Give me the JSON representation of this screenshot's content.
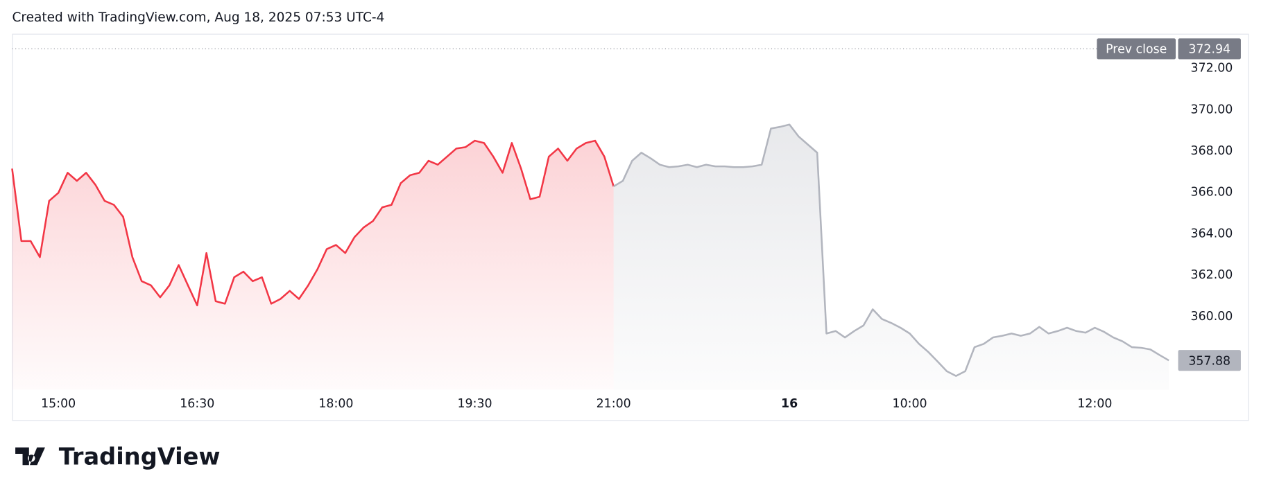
{
  "chart_data": {
    "type": "line",
    "title": "Created with TradingView.com, Aug 18, 2025 07:53 UTC-4",
    "brand": "TradingView",
    "categories": [
      null,
      null,
      null,
      null,
      null,
      "15:00",
      null,
      null,
      null,
      null,
      null,
      null,
      null,
      null,
      null,
      null,
      null,
      null,
      null,
      null,
      "16:30",
      null,
      null,
      null,
      null,
      null,
      null,
      null,
      null,
      null,
      null,
      null,
      null,
      null,
      null,
      "18:00",
      null,
      null,
      null,
      null,
      null,
      null,
      null,
      null,
      null,
      null,
      null,
      null,
      null,
      null,
      "19:30",
      null,
      null,
      null,
      null,
      null,
      null,
      null,
      null,
      null,
      null,
      null,
      null,
      null,
      null,
      "21:00",
      null,
      null,
      null,
      null,
      null,
      null,
      null,
      null,
      null,
      null,
      null,
      null,
      null,
      null,
      null,
      null,
      null,
      null,
      "16",
      null,
      null,
      null,
      null,
      null,
      null,
      null,
      null,
      null,
      null,
      null,
      null,
      "10:00",
      null,
      null,
      null,
      null,
      null,
      null,
      null,
      null,
      null,
      null,
      null,
      null,
      null,
      null,
      null,
      null,
      null,
      null,
      null,
      "12:00",
      null,
      null,
      null,
      null,
      null,
      null,
      null,
      null
    ],
    "series": [
      {
        "color": "#f23645",
        "values": [
          367.15,
          363.65,
          363.65,
          362.87,
          365.59,
          365.98,
          366.95,
          366.56,
          366.95,
          366.37,
          365.59,
          365.4,
          364.82,
          362.87,
          361.71,
          361.51,
          360.93,
          361.51,
          362.49,
          361.51,
          360.54,
          363.07,
          360.74,
          360.62,
          361.9,
          362.17,
          361.71,
          361.9,
          360.62,
          360.85,
          361.24,
          360.85,
          361.51,
          362.29,
          363.26,
          363.46,
          363.07,
          363.84,
          364.31,
          364.62,
          365.28,
          365.4,
          366.45,
          366.83,
          366.95,
          367.53,
          367.34,
          367.73,
          368.12,
          368.19,
          368.5,
          368.39,
          367.73,
          366.95,
          368.39,
          367.15,
          365.67,
          365.79,
          367.73,
          368.12,
          367.53,
          368.12,
          368.39,
          368.5,
          367.73,
          366.29,
          null,
          null,
          null,
          null,
          null,
          null,
          null,
          null,
          null,
          null,
          null,
          null,
          null,
          null,
          null,
          null,
          null,
          null,
          null,
          null,
          null,
          null,
          null,
          null,
          null,
          null,
          null,
          null,
          null,
          null,
          null,
          null,
          null,
          null,
          null,
          null,
          null,
          null,
          null,
          null,
          null,
          null,
          null,
          null,
          null,
          null,
          null,
          null,
          null,
          null,
          null,
          null,
          null,
          null,
          null,
          null,
          null,
          null,
          null,
          null
        ]
      },
      {
        "color": "#b2b5be",
        "values": [
          null,
          null,
          null,
          null,
          null,
          null,
          null,
          null,
          null,
          null,
          null,
          null,
          null,
          null,
          null,
          null,
          null,
          null,
          null,
          null,
          null,
          null,
          null,
          null,
          null,
          null,
          null,
          null,
          null,
          null,
          null,
          null,
          null,
          null,
          null,
          null,
          null,
          null,
          null,
          null,
          null,
          null,
          null,
          null,
          null,
          null,
          null,
          null,
          null,
          null,
          null,
          null,
          null,
          null,
          null,
          null,
          null,
          null,
          null,
          null,
          null,
          null,
          null,
          null,
          null,
          366.29,
          366.56,
          367.53,
          367.92,
          367.65,
          367.34,
          367.22,
          367.26,
          367.34,
          367.22,
          367.34,
          367.26,
          367.26,
          367.22,
          367.22,
          367.26,
          367.34,
          369.09,
          369.17,
          369.28,
          368.7,
          368.31,
          367.92,
          359.18,
          359.3,
          358.99,
          359.3,
          359.57,
          360.35,
          359.88,
          359.69,
          359.46,
          359.18,
          358.68,
          358.29,
          357.83,
          357.36,
          357.13,
          357.36,
          358.52,
          358.68,
          358.99,
          359.07,
          359.18,
          359.07,
          359.18,
          359.5,
          359.18,
          359.3,
          359.46,
          359.3,
          359.22,
          359.46,
          359.26,
          358.99,
          358.8,
          358.52,
          358.49,
          358.41,
          358.14,
          357.88
        ]
      }
    ],
    "ylim": [
      356.47,
      373.67
    ],
    "yticks": [
      {
        "value": 360,
        "label": "360.00"
      },
      {
        "value": 362,
        "label": "362.00"
      },
      {
        "value": 364,
        "label": "364.00"
      },
      {
        "value": 366,
        "label": "366.00"
      },
      {
        "value": 368,
        "label": "368.00"
      },
      {
        "value": 370,
        "label": "370.00"
      },
      {
        "value": 372,
        "label": "372.00"
      }
    ],
    "grid": false,
    "prev_close": {
      "label": "Prev close",
      "value": 372.94
    }
  }
}
